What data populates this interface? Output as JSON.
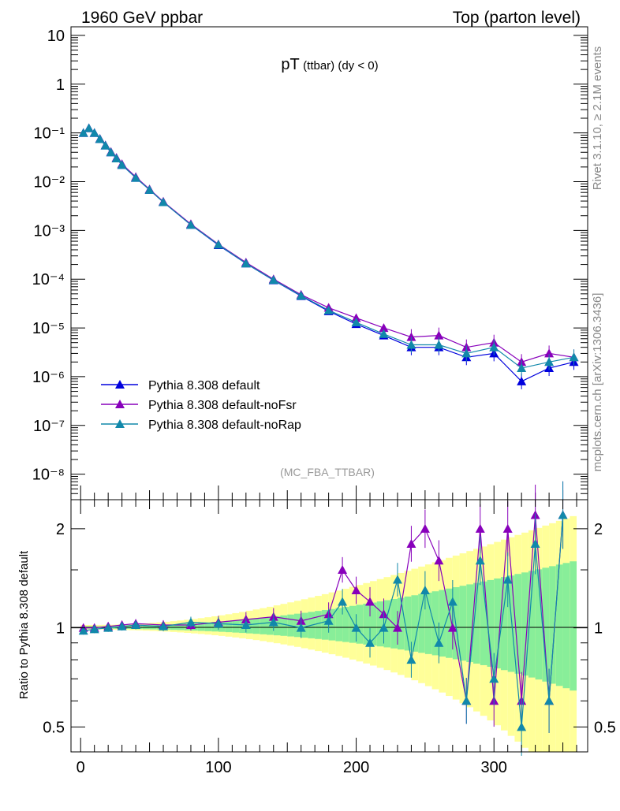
{
  "header": {
    "left": "1960 GeV ppbar",
    "right": "Top (parton level)"
  },
  "side_labels": {
    "rivet": "Rivet 3.1.10, ≥ 2.1M events",
    "mcplots": "mcplots.cern.ch [arXiv:1306.3436]"
  },
  "chart_data": [
    {
      "type": "line",
      "title_main": "pT",
      "title_sub": "(ttbar) (dy < 0)",
      "analysis_tag": "(MC_FBA_TTBAR)",
      "xlabel": "",
      "ylabel": "",
      "y_scale": "log",
      "ylim": [
        3e-09,
        15
      ],
      "xlim": [
        -7,
        368
      ],
      "y_tick_labels": [
        "10⁻⁸",
        "10⁻⁷",
        "10⁻⁶",
        "10⁻⁵",
        "10⁻⁴",
        "10⁻³",
        "10⁻²",
        "10⁻¹",
        "1",
        "10"
      ],
      "legend_position": "bottom-left",
      "series": [
        {
          "name": "Pythia 8.308 default",
          "color": "#0000dd",
          "x": [
            2,
            6,
            10,
            14,
            18,
            22,
            26,
            30,
            40,
            50,
            60,
            80,
            100,
            120,
            140,
            160,
            180,
            200,
            220,
            240,
            260,
            280,
            300,
            320,
            340,
            358
          ],
          "y": [
            0.1,
            0.125,
            0.1,
            0.075,
            0.055,
            0.04,
            0.03,
            0.022,
            0.012,
            0.0068,
            0.0038,
            0.0013,
            0.0005,
            0.00021,
            9.5e-05,
            4.5e-05,
            2.2e-05,
            1.2e-05,
            7e-06,
            4e-06,
            4e-06,
            2.5e-06,
            3e-06,
            8e-07,
            1.5e-06,
            2e-06
          ]
        },
        {
          "name": "Pythia 8.308 default-noFsr",
          "color": "#8800bb",
          "x": [
            2,
            6,
            10,
            14,
            18,
            22,
            26,
            30,
            40,
            50,
            60,
            80,
            100,
            120,
            140,
            160,
            180,
            200,
            220,
            240,
            260,
            280,
            300,
            320,
            340,
            358
          ],
          "y": [
            0.1,
            0.125,
            0.1,
            0.076,
            0.056,
            0.041,
            0.031,
            0.023,
            0.0125,
            0.007,
            0.0039,
            0.00135,
            0.00052,
            0.00022,
            0.0001,
            4.8e-05,
            2.6e-05,
            1.6e-05,
            1e-05,
            6.5e-06,
            7e-06,
            4e-06,
            5e-06,
            2e-06,
            3e-06,
            2.5e-06
          ]
        },
        {
          "name": "Pythia 8.308 default-noRap",
          "color": "#1188aa",
          "x": [
            2,
            6,
            10,
            14,
            18,
            22,
            26,
            30,
            40,
            50,
            60,
            80,
            100,
            120,
            140,
            160,
            180,
            200,
            220,
            240,
            260,
            280,
            300,
            320,
            340,
            358
          ],
          "y": [
            0.1,
            0.125,
            0.1,
            0.075,
            0.055,
            0.04,
            0.03,
            0.022,
            0.012,
            0.0068,
            0.0038,
            0.0013,
            0.00051,
            0.00021,
            9.6e-05,
            4.6e-05,
            2.3e-05,
            1.3e-05,
            7.5e-06,
            4.5e-06,
            4.5e-06,
            3e-06,
            4e-06,
            1.5e-06,
            2e-06,
            2.5e-06
          ]
        }
      ]
    },
    {
      "type": "line",
      "ylabel": "Ratio to Pythia 8.308 default",
      "y_scale": "log",
      "ylim": [
        0.42,
        2.45
      ],
      "xlim": [
        -7,
        368
      ],
      "y_ticks": [
        0.5,
        1,
        2
      ],
      "y_tick_labels": [
        "0.5",
        "1",
        "2"
      ],
      "x_ticks": [
        0,
        100,
        200,
        300
      ],
      "x_tick_labels": [
        "0",
        "100",
        "200",
        "300"
      ],
      "reference_line": 1,
      "band_colors": {
        "outer": "#ffff99",
        "inner": "#88ee99"
      },
      "series": [
        {
          "name": "Pythia 8.308 default-noFsr",
          "color": "#8800bb",
          "x": [
            2,
            10,
            20,
            30,
            40,
            60,
            80,
            100,
            120,
            140,
            160,
            180,
            190,
            200,
            210,
            220,
            230,
            240,
            250,
            260,
            270,
            280,
            290,
            300,
            310,
            320,
            330,
            340,
            350
          ],
          "y": [
            1.0,
            1.0,
            1.01,
            1.02,
            1.03,
            1.02,
            1.02,
            1.04,
            1.06,
            1.08,
            1.05,
            1.1,
            1.5,
            1.3,
            1.2,
            1.1,
            1.0,
            1.8,
            2.0,
            1.6,
            1.0,
            0.6,
            2.0,
            0.6,
            2.0,
            0.6,
            2.2,
            0.6,
            2.2
          ]
        },
        {
          "name": "Pythia 8.308 default-noRap",
          "color": "#1188aa",
          "x": [
            2,
            10,
            20,
            30,
            40,
            60,
            80,
            100,
            120,
            140,
            160,
            180,
            190,
            200,
            210,
            220,
            230,
            240,
            250,
            260,
            270,
            280,
            290,
            300,
            310,
            320,
            330,
            340,
            350
          ],
          "y": [
            0.98,
            0.99,
            1.0,
            1.01,
            1.02,
            1.01,
            1.04,
            1.03,
            1.02,
            1.04,
            1.0,
            1.05,
            1.2,
            1.0,
            0.9,
            1.0,
            1.4,
            0.8,
            1.3,
            0.9,
            1.2,
            0.6,
            1.6,
            0.7,
            1.4,
            0.5,
            1.8,
            0.6,
            2.2
          ]
        }
      ]
    }
  ]
}
